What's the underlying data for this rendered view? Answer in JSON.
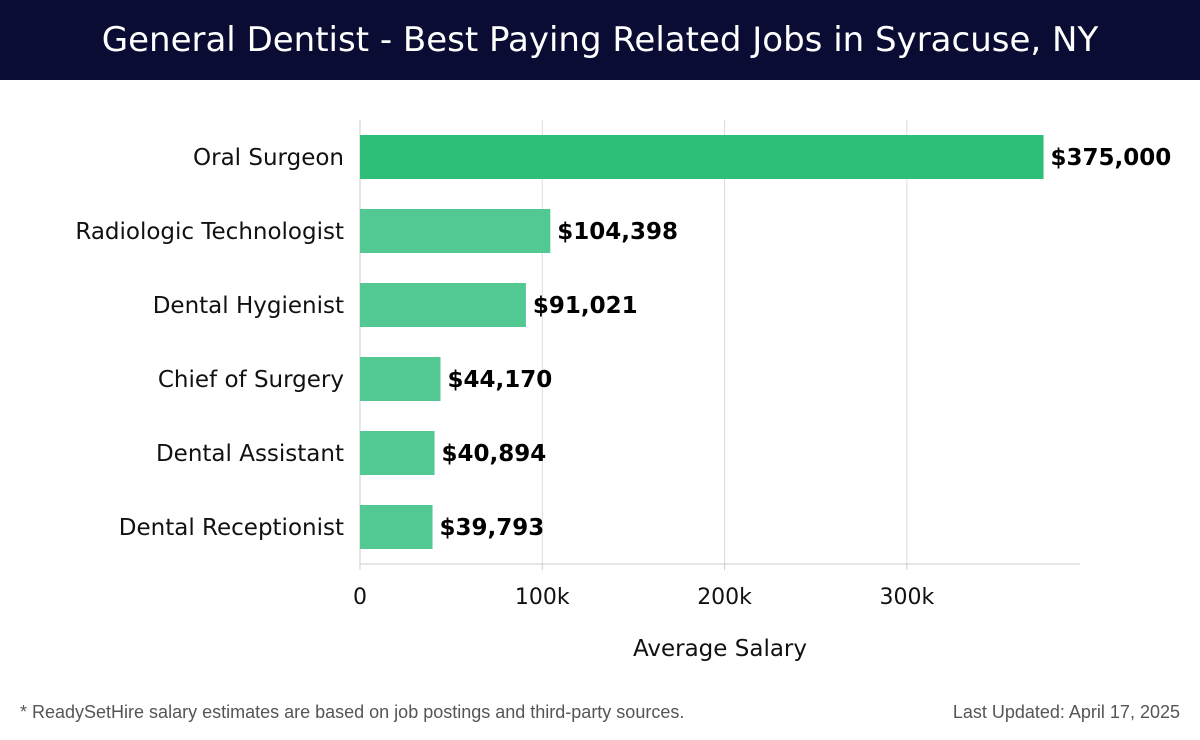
{
  "header": {
    "title": "General Dentist - Best Paying Related Jobs in Syracuse, NY"
  },
  "footer": {
    "note": "* ReadySetHire salary estimates are based on job postings and third-party sources.",
    "updated": "Last Updated: April 17, 2025"
  },
  "colors": {
    "header_bg": "#0b0c33",
    "top_bar": "#2dbf78",
    "bar": "#52c993",
    "grid": "#dddddd",
    "axis": "#cccccc"
  },
  "chart_data": {
    "type": "bar",
    "orientation": "horizontal",
    "categories": [
      "Oral Surgeon",
      "Radiologic Technologist",
      "Dental Hygienist",
      "Chief of Surgery",
      "Dental Assistant",
      "Dental Receptionist"
    ],
    "values": [
      375000,
      104398,
      91021,
      44170,
      40894,
      39793
    ],
    "value_labels": [
      "$375,000",
      "$104,398",
      "$91,021",
      "$44,170",
      "$40,894",
      "$39,793"
    ],
    "xlabel": "Average Salary",
    "xlim": [
      0,
      395000
    ],
    "xticks": [
      0,
      100000,
      200000,
      300000
    ],
    "xtick_labels": [
      "0",
      "100k",
      "200k",
      "300k"
    ],
    "grid": true
  }
}
